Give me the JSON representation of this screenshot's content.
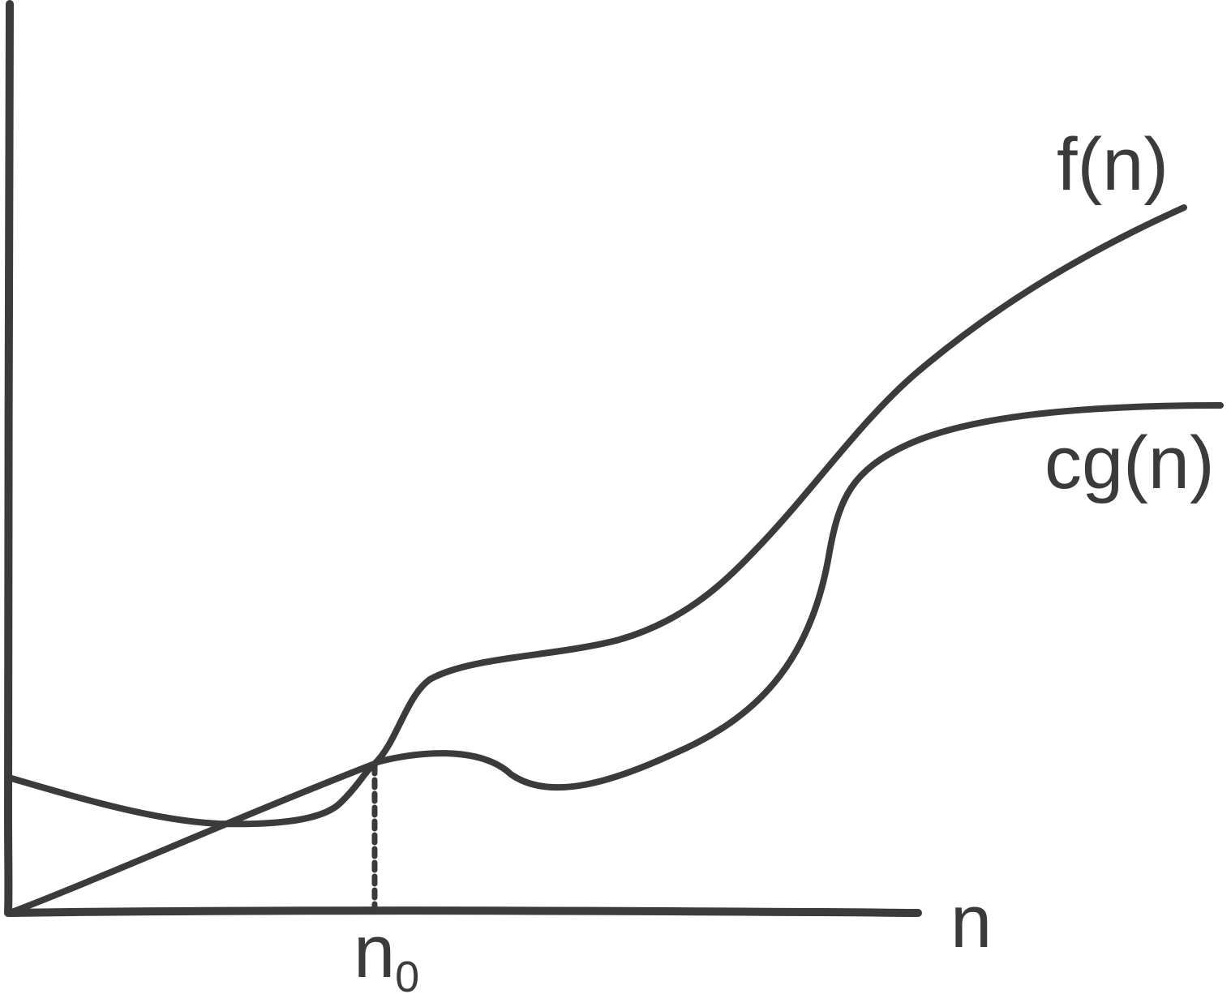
{
  "diagram": {
    "ink_color": "#3b3b3b",
    "labels": {
      "f_curve": "f(n)",
      "cg_curve": "cg(n)",
      "x_axis": "n",
      "threshold_base": "n",
      "threshold_subscript": "0"
    }
  }
}
